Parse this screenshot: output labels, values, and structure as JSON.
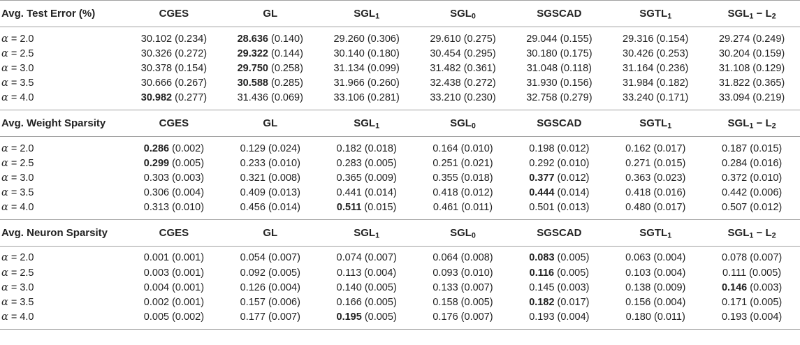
{
  "columns": [
    {
      "base": "CGES",
      "sub": ""
    },
    {
      "base": "GL",
      "sub": ""
    },
    {
      "base": "SGL",
      "sub": "1"
    },
    {
      "base": "SGL",
      "sub": "0"
    },
    {
      "base": "SGSCAD",
      "sub": ""
    },
    {
      "base": "SGTL",
      "sub": "1"
    },
    {
      "base": "SGL",
      "sub": "1",
      "tail": " − L",
      "sub2": "2"
    }
  ],
  "alpha_symbol": "α",
  "sections": [
    {
      "title": "Avg. Test Error (%)",
      "rows": [
        {
          "alpha": "= 2.0",
          "cells": [
            [
              "30.102",
              "(0.234)",
              false
            ],
            [
              "28.636",
              "(0.140)",
              true
            ],
            [
              "29.260",
              "(0.306)",
              false
            ],
            [
              "29.610",
              "(0.275)",
              false
            ],
            [
              "29.044",
              "(0.155)",
              false
            ],
            [
              "29.316",
              "(0.154)",
              false
            ],
            [
              "29.274",
              "(0.249)",
              false
            ]
          ]
        },
        {
          "alpha": "= 2.5",
          "cells": [
            [
              "30.326",
              "(0.272)",
              false
            ],
            [
              "29.322",
              "(0.144)",
              true
            ],
            [
              "30.140",
              "(0.180)",
              false
            ],
            [
              "30.454",
              "(0.295)",
              false
            ],
            [
              "30.180",
              "(0.175)",
              false
            ],
            [
              "30.426",
              "(0.253)",
              false
            ],
            [
              "30.204",
              "(0.159)",
              false
            ]
          ]
        },
        {
          "alpha": "= 3.0",
          "cells": [
            [
              "30.378",
              "(0.154)",
              false
            ],
            [
              "29.750",
              "(0.258)",
              true
            ],
            [
              "31.134",
              "(0.099)",
              false
            ],
            [
              "31.482",
              "(0.361)",
              false
            ],
            [
              "31.048",
              "(0.118)",
              false
            ],
            [
              "31.164",
              "(0.236)",
              false
            ],
            [
              "31.108",
              "(0.129)",
              false
            ]
          ]
        },
        {
          "alpha": "= 3.5",
          "cells": [
            [
              "30.666",
              "(0.267)",
              false
            ],
            [
              "30.588",
              "(0.285)",
              true
            ],
            [
              "31.966",
              "(0.260)",
              false
            ],
            [
              "32.438",
              "(0.272)",
              false
            ],
            [
              "31.930",
              "(0.156)",
              false
            ],
            [
              "31.984",
              "(0.182)",
              false
            ],
            [
              "31.822",
              "(0.365)",
              false
            ]
          ]
        },
        {
          "alpha": "= 4.0",
          "cells": [
            [
              "30.982",
              "(0.277)",
              true
            ],
            [
              "31.436",
              "(0.069)",
              false
            ],
            [
              "33.106",
              "(0.281)",
              false
            ],
            [
              "33.210",
              "(0.230)",
              false
            ],
            [
              "32.758",
              "(0.279)",
              false
            ],
            [
              "33.240",
              "(0.171)",
              false
            ],
            [
              "33.094",
              "(0.219)",
              false
            ]
          ]
        }
      ]
    },
    {
      "title": "Avg. Weight Sparsity",
      "rows": [
        {
          "alpha": "= 2.0",
          "cells": [
            [
              "0.286",
              "(0.002)",
              true
            ],
            [
              "0.129",
              "(0.024)",
              false
            ],
            [
              "0.182",
              "(0.018)",
              false
            ],
            [
              "0.164",
              "(0.010)",
              false
            ],
            [
              "0.198",
              "(0.012)",
              false
            ],
            [
              "0.162",
              "(0.017)",
              false
            ],
            [
              "0.187",
              "(0.015)",
              false
            ]
          ]
        },
        {
          "alpha": "= 2.5",
          "cells": [
            [
              "0.299",
              "(0.005)",
              true
            ],
            [
              "0.233",
              "(0.010)",
              false
            ],
            [
              "0.283",
              "(0.005)",
              false
            ],
            [
              "0.251",
              "(0.021)",
              false
            ],
            [
              "0.292",
              "(0.010)",
              false
            ],
            [
              "0.271",
              "(0.015)",
              false
            ],
            [
              "0.284",
              "(0.016)",
              false
            ]
          ]
        },
        {
          "alpha": "= 3.0",
          "cells": [
            [
              "0.303",
              "(0.003)",
              false
            ],
            [
              "0.321",
              "(0.008)",
              false
            ],
            [
              "0.365",
              "(0.009)",
              false
            ],
            [
              "0.355",
              "(0.018)",
              false
            ],
            [
              "0.377",
              "(0.012)",
              true
            ],
            [
              "0.363",
              "(0.023)",
              false
            ],
            [
              "0.372",
              "(0.010)",
              false
            ]
          ]
        },
        {
          "alpha": "= 3.5",
          "cells": [
            [
              "0.306",
              "(0.004)",
              false
            ],
            [
              "0.409",
              "(0.013)",
              false
            ],
            [
              "0.441",
              "(0.014)",
              false
            ],
            [
              "0.418",
              "(0.012)",
              false
            ],
            [
              "0.444",
              "(0.014)",
              true
            ],
            [
              "0.418",
              "(0.016)",
              false
            ],
            [
              "0.442",
              "(0.006)",
              false
            ]
          ]
        },
        {
          "alpha": "= 4.0",
          "cells": [
            [
              "0.313",
              "(0.010)",
              false
            ],
            [
              "0.456",
              "(0.014)",
              false
            ],
            [
              "0.511",
              "(0.015)",
              true
            ],
            [
              "0.461",
              "(0.011)",
              false
            ],
            [
              "0.501",
              "(0.013)",
              false
            ],
            [
              "0.480",
              "(0.017)",
              false
            ],
            [
              "0.507",
              "(0.012)",
              false
            ]
          ]
        }
      ]
    },
    {
      "title": "Avg. Neuron Sparsity",
      "rows": [
        {
          "alpha": "= 2.0",
          "cells": [
            [
              "0.001",
              "(0.001)",
              false
            ],
            [
              "0.054",
              "(0.007)",
              false
            ],
            [
              "0.074",
              "(0.007)",
              false
            ],
            [
              "0.064",
              "(0.008)",
              false
            ],
            [
              "0.083",
              "(0.005)",
              true
            ],
            [
              "0.063",
              "(0.004)",
              false
            ],
            [
              "0.078",
              "(0.007)",
              false
            ]
          ]
        },
        {
          "alpha": "= 2.5",
          "cells": [
            [
              "0.003",
              "(0.001)",
              false
            ],
            [
              "0.092",
              "(0.005)",
              false
            ],
            [
              "0.113",
              "(0.004)",
              false
            ],
            [
              "0.093",
              "(0.010)",
              false
            ],
            [
              "0.116",
              "(0.005)",
              true
            ],
            [
              "0.103",
              "(0.004)",
              false
            ],
            [
              "0.111",
              "(0.005)",
              false
            ]
          ]
        },
        {
          "alpha": "= 3.0",
          "cells": [
            [
              "0.004",
              "(0.001)",
              false
            ],
            [
              "0.126",
              "(0.004)",
              false
            ],
            [
              "0.140",
              "(0.005)",
              false
            ],
            [
              "0.133",
              "(0.007)",
              false
            ],
            [
              "0.145",
              "(0.003)",
              false
            ],
            [
              "0.138",
              "(0.009)",
              false
            ],
            [
              "0.146",
              "(0.003)",
              true
            ]
          ]
        },
        {
          "alpha": "= 3.5",
          "cells": [
            [
              "0.002",
              "(0.001)",
              false
            ],
            [
              "0.157",
              "(0.006)",
              false
            ],
            [
              "0.166",
              "(0.005)",
              false
            ],
            [
              "0.158",
              "(0.005)",
              false
            ],
            [
              "0.182",
              "(0.017)",
              true
            ],
            [
              "0.156",
              "(0.004)",
              false
            ],
            [
              "0.171",
              "(0.005)",
              false
            ]
          ]
        },
        {
          "alpha": "= 4.0",
          "cells": [
            [
              "0.005",
              "(0.002)",
              false
            ],
            [
              "0.177",
              "(0.007)",
              false
            ],
            [
              "0.195",
              "(0.005)",
              true
            ],
            [
              "0.176",
              "(0.007)",
              false
            ],
            [
              "0.193",
              "(0.004)",
              false
            ],
            [
              "0.180",
              "(0.011)",
              false
            ],
            [
              "0.193",
              "(0.004)",
              false
            ]
          ]
        }
      ]
    }
  ]
}
